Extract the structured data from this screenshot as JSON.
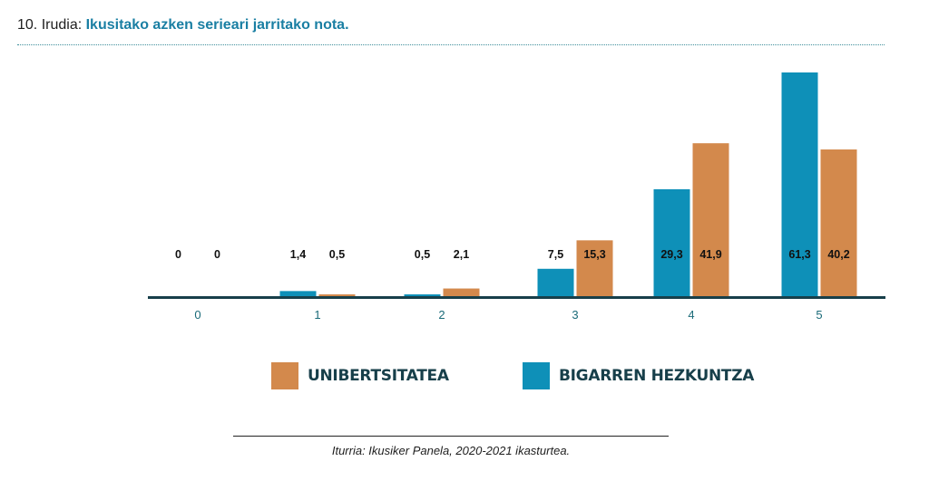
{
  "figure": {
    "number_label": "10. Irudia:",
    "title": "Ikusitako azken serieari jarritako nota.",
    "source": "Iturria: Ikusiker Panela, 2020-2021 ikasturtea."
  },
  "colors": {
    "bigarren": "#0e90b8",
    "unibertsitatea": "#d3894c",
    "axis": "#173f4a",
    "title": "#1a7fa3"
  },
  "chart_data": {
    "type": "bar",
    "title": "Ikusitako azken serieari jarritako nota.",
    "xlabel": "",
    "ylabel": "",
    "categories": [
      "0",
      "1",
      "2",
      "3",
      "4",
      "5"
    ],
    "ylim": [
      0,
      65
    ],
    "grid": false,
    "legend_position": "bottom",
    "series": [
      {
        "name": "BIGARREN HEZKUNTZA",
        "values": [
          0,
          1.4,
          0.5,
          7.5,
          29.3,
          61.3
        ],
        "labels": [
          "0",
          "1,4",
          "0,5",
          "7,5",
          "29,3",
          "61,3"
        ],
        "color": "#0e90b8"
      },
      {
        "name": "UNIBERTSITATEA",
        "values": [
          0,
          0.5,
          2.1,
          15.3,
          41.9,
          40.2
        ],
        "labels": [
          "0",
          "0,5",
          "2,1",
          "15,3",
          "41,9",
          "40,2"
        ],
        "color": "#d3894c"
      }
    ]
  },
  "legend": {
    "items": [
      {
        "label": "UNIBERTSITATEA",
        "color": "#d3894c"
      },
      {
        "label": "BIGARREN HEZKUNTZA",
        "color": "#0e90b8"
      }
    ]
  }
}
